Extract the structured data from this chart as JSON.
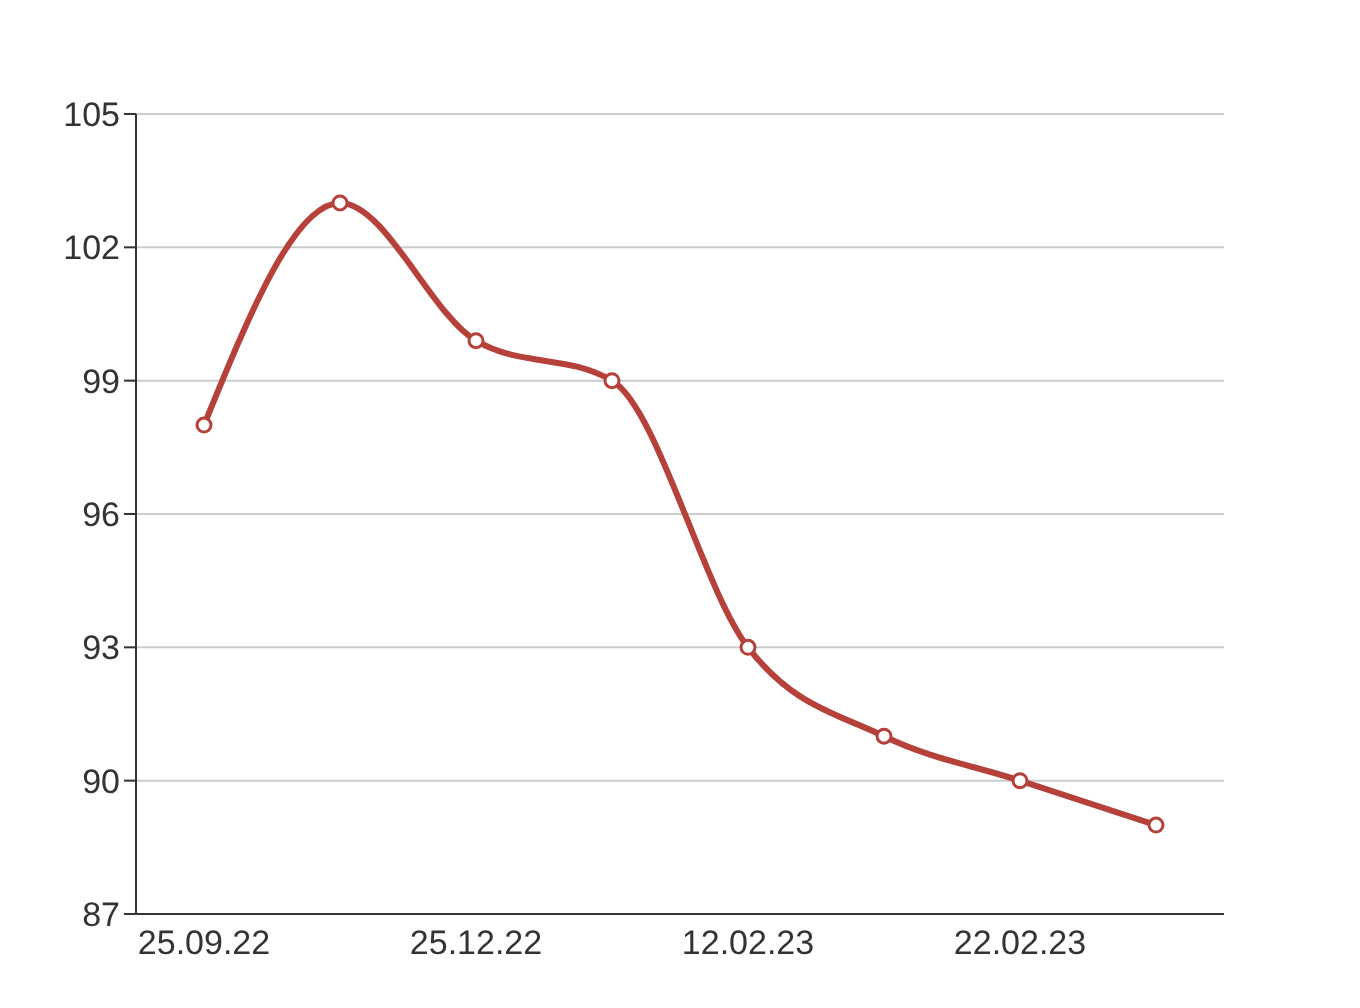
{
  "chart_data": {
    "type": "line",
    "categories": [
      "25.09.22",
      null,
      "25.12.22",
      null,
      "12.02.23",
      null,
      "22.02.23",
      null
    ],
    "series": [
      {
        "color": "#b5413a",
        "values": [
          98,
          103,
          99.9,
          99,
          93,
          91,
          90,
          89
        ]
      }
    ],
    "ylim": [
      87,
      105
    ],
    "yticks": [
      87,
      90,
      93,
      96,
      99,
      102,
      105
    ],
    "grid": "y",
    "legend": false,
    "marker": "circle",
    "line_style": "solid"
  }
}
